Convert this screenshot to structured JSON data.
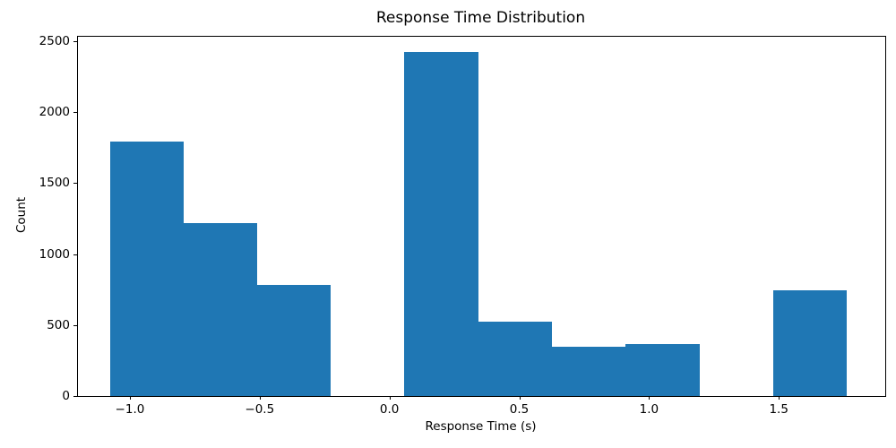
{
  "chart_data": {
    "type": "bar",
    "subtype": "histogram",
    "title": "Response Time Distribution",
    "xlabel": "Response Time (s)",
    "ylabel": "Count",
    "bin_edges": [
      -1.077,
      -0.793,
      -0.509,
      -0.226,
      0.058,
      0.342,
      0.626,
      0.91,
      1.194,
      1.477,
      1.761
    ],
    "counts": [
      1790,
      1220,
      780,
      0,
      2420,
      525,
      350,
      365,
      0,
      745
    ],
    "xlim": [
      -1.2,
      1.91
    ],
    "ylim": [
      0,
      2530
    ],
    "x_ticks": [
      -1.0,
      -0.5,
      0.0,
      0.5,
      1.0,
      1.5
    ],
    "x_tick_labels": [
      "−1.0",
      "−0.5",
      "0.0",
      "0.5",
      "1.0",
      "1.5"
    ],
    "y_ticks": [
      0,
      500,
      1000,
      1500,
      2000,
      2500
    ],
    "y_tick_labels": [
      "0",
      "500",
      "1000",
      "1500",
      "2000",
      "2500"
    ],
    "bar_color": "#1f77b4",
    "axis_color": "#000000",
    "background_color": "#ffffff",
    "grid": false,
    "legend": null
  }
}
